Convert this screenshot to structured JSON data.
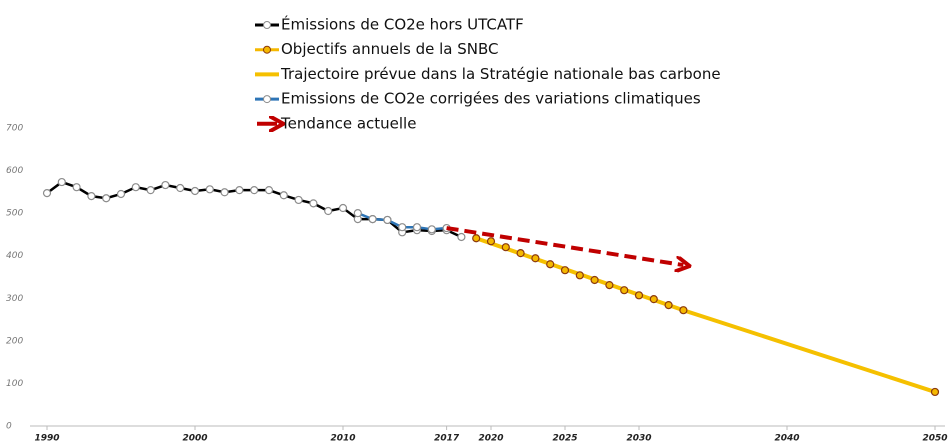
{
  "chart_data": {
    "type": "line",
    "xlim": [
      1990,
      2050
    ],
    "xticks": [
      1990,
      2000,
      2010,
      2017,
      2020,
      2025,
      2030,
      2040,
      2050
    ],
    "ylim": [
      0,
      700
    ],
    "yticks": [
      0,
      100,
      200,
      300,
      400,
      500,
      600,
      700
    ],
    "series": [
      {
        "name": "Émissions de CO2e hors UTCATF",
        "color": "#000000",
        "marker": true,
        "marker_fill": "#ffffff",
        "marker_edge": "#8c8c8c",
        "x": [
          1990,
          1991,
          1992,
          1993,
          1994,
          1995,
          1996,
          1997,
          1998,
          1999,
          2000,
          2001,
          2002,
          2003,
          2004,
          2005,
          2006,
          2007,
          2008,
          2009,
          2010,
          2011,
          2012,
          2013,
          2014,
          2015,
          2016,
          2017,
          2018
        ],
        "values": [
          547,
          573,
          561,
          540,
          535,
          545,
          561,
          554,
          566,
          559,
          552,
          556,
          549,
          554,
          554,
          554,
          542,
          531,
          523,
          505,
          512,
          486,
          486,
          484,
          455,
          460,
          458,
          460,
          444
        ]
      },
      {
        "name": "Objectifs annuels de la SNBC",
        "color": "#f5b800",
        "marker": true,
        "marker_fill": "#f5b800",
        "marker_edge": "#8b3a0f",
        "x": [
          2019,
          2020,
          2021,
          2022,
          2023,
          2024,
          2025,
          2026,
          2027,
          2028,
          2029,
          2030,
          2031,
          2032,
          2033,
          2050
        ],
        "values": [
          441,
          434,
          420,
          406,
          394,
          380,
          366,
          354,
          343,
          331,
          319,
          307,
          298,
          284,
          272,
          80
        ],
        "line": false
      },
      {
        "name": "Trajectoire prévue dans la Stratégie nationale bas carbone",
        "color": "#f5c000",
        "marker": false,
        "x": [
          2019,
          2033,
          2050
        ],
        "values": [
          441,
          272,
          80
        ]
      },
      {
        "name": "Emissions de CO2e corrigées des variations climatiques",
        "color": "#2e75b6",
        "marker": true,
        "marker_fill": "#ffffff",
        "marker_edge": "#8c8c8c",
        "x": [
          2011,
          2012,
          2013,
          2014,
          2015,
          2016,
          2017
        ],
        "values": [
          500,
          486,
          484,
          467,
          467,
          462,
          465
        ]
      },
      {
        "name": "Tendance actuelle",
        "color": "#c00000",
        "marker": false,
        "dashed": true,
        "arrow": true,
        "x": [
          2017,
          2033
        ],
        "values": [
          465,
          378
        ]
      }
    ]
  }
}
